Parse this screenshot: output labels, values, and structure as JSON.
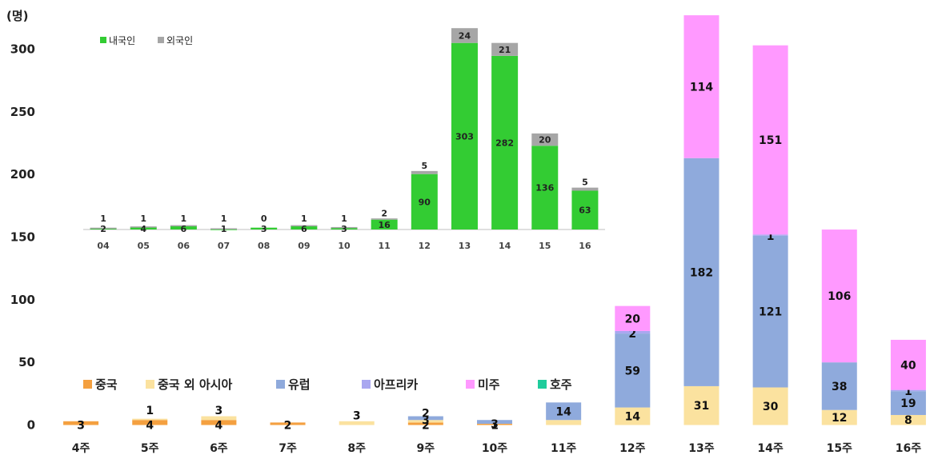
{
  "chart_data": [
    {
      "type": "bar",
      "stacked": true,
      "ylabel": "(명)",
      "ylim": [
        0,
        330
      ],
      "yticks": [
        "0",
        "50",
        "100",
        "150",
        "200",
        "250",
        "300"
      ],
      "categories": [
        "4주",
        "5주",
        "6주",
        "7주",
        "8주",
        "9주",
        "10주",
        "11주",
        "12주",
        "13주",
        "14주",
        "15주",
        "16주"
      ],
      "legend_position": "lower-left",
      "series": [
        {
          "name": "중국",
          "color": "#f4a040",
          "values": [
            3,
            4,
            4,
            2,
            0,
            2,
            1,
            0,
            0,
            0,
            0,
            0,
            0
          ],
          "labels": [
            "3",
            "4",
            "4",
            "2",
            "",
            "2",
            "1",
            "",
            "",
            "",
            "",
            "",
            ""
          ]
        },
        {
          "name": "중국 외 아시아",
          "color": "#fbe29f",
          "values": [
            0,
            1,
            3,
            0,
            3,
            2,
            0,
            4,
            14,
            31,
            30,
            12,
            8
          ],
          "labels": [
            "",
            "1",
            "3",
            "",
            "3",
            "2",
            "",
            "4",
            "14",
            "31",
            "30",
            "12",
            "8"
          ]
        },
        {
          "name": "유럽",
          "color": "#8faadc",
          "values": [
            0,
            0,
            0,
            0,
            0,
            3,
            3,
            14,
            59,
            182,
            121,
            38,
            19
          ],
          "labels": [
            "",
            "",
            "",
            "",
            "",
            "3",
            "3",
            "14",
            "59",
            "182",
            "121",
            "38",
            "19"
          ]
        },
        {
          "name": "아프리카",
          "color": "#a9a7f0",
          "values": [
            0,
            0,
            0,
            0,
            0,
            0,
            0,
            0,
            2,
            0,
            1,
            0,
            1
          ],
          "labels": [
            "",
            "",
            "",
            "",
            "",
            "",
            "",
            "",
            "2",
            "",
            "1",
            "",
            "1"
          ]
        },
        {
          "name": "미주",
          "color": "#ff99ff",
          "values": [
            0,
            0,
            0,
            0,
            0,
            0,
            0,
            0,
            20,
            114,
            151,
            106,
            40
          ],
          "labels": [
            "",
            "",
            "",
            "",
            "",
            "",
            "",
            "",
            "20",
            "114",
            "151",
            "106",
            "40"
          ]
        },
        {
          "name": "호주",
          "color": "#1fcc9c",
          "values": [
            0,
            0,
            0,
            0,
            0,
            0,
            0,
            0,
            0,
            0,
            0,
            0,
            0
          ],
          "labels": [
            "",
            "",
            "",
            "",
            "",
            "",
            "",
            "",
            "",
            "",
            "",
            "",
            ""
          ]
        }
      ]
    },
    {
      "type": "bar",
      "stacked": true,
      "ylim": [
        0,
        330
      ],
      "categories": [
        "04",
        "05",
        "06",
        "07",
        "08",
        "09",
        "10",
        "11",
        "12",
        "13",
        "14",
        "15",
        "16"
      ],
      "legend_position": "top-left",
      "series": [
        {
          "name": "내국인",
          "color": "#33cc33",
          "values": [
            2,
            4,
            6,
            1,
            3,
            6,
            3,
            16,
            90,
            303,
            282,
            136,
            63
          ],
          "labels": [
            "2",
            "4",
            "6",
            "1",
            "3",
            "6",
            "3",
            "16",
            "90",
            "303",
            "282",
            "136",
            "63"
          ]
        },
        {
          "name": "외국인",
          "color": "#a6a6a6",
          "values": [
            1,
            1,
            1,
            1,
            0,
            1,
            1,
            2,
            5,
            24,
            21,
            20,
            5
          ],
          "labels": [
            "1",
            "1",
            "1",
            "1",
            "0",
            "1",
            "1",
            "2",
            "5",
            "24",
            "21",
            "20",
            "5"
          ]
        }
      ]
    }
  ]
}
